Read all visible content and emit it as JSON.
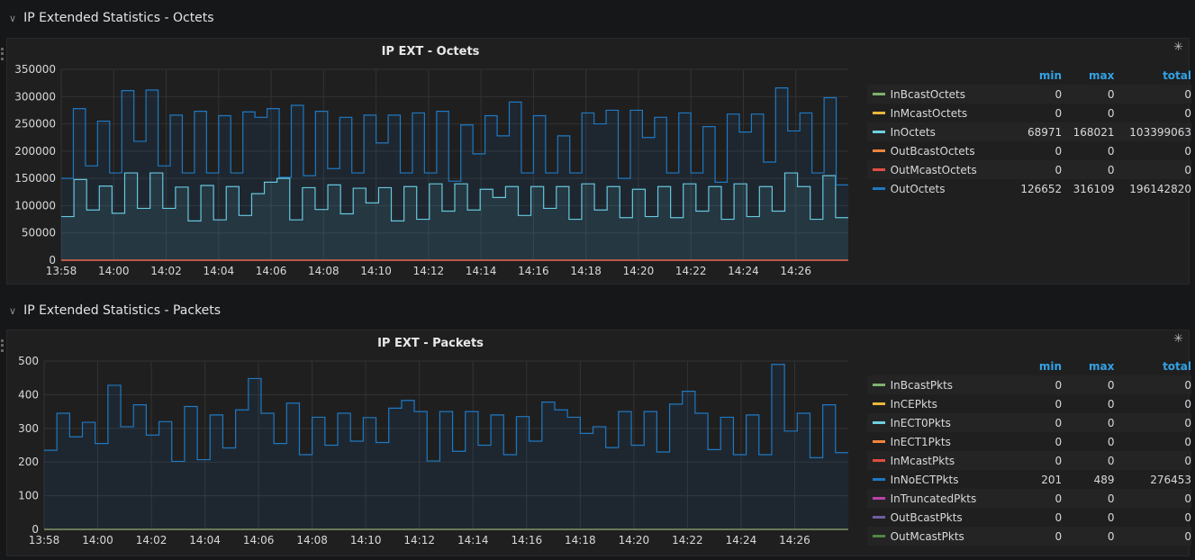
{
  "rows": [
    {
      "title": "IP Extended Statistics - Octets"
    },
    {
      "title": "IP Extended Statistics - Packets"
    }
  ],
  "legend_headers": {
    "min": "min",
    "max": "max",
    "total": "total"
  },
  "chart_data": [
    {
      "type": "line",
      "title": "IP EXT - Octets",
      "x_ticks": [
        "13:58",
        "14:00",
        "14:02",
        "14:04",
        "14:06",
        "14:08",
        "14:10",
        "14:12",
        "14:14",
        "14:16",
        "14:18",
        "14:20",
        "14:22",
        "14:24",
        "14:26"
      ],
      "x_range_minutes": [
        0,
        30
      ],
      "y_ticks": [
        "0",
        "50000",
        "100000",
        "150000",
        "200000",
        "250000",
        "300000",
        "350000"
      ],
      "ylim": [
        0,
        350000
      ],
      "series": [
        {
          "name": "InBcastOctets",
          "color": "#7eb26d",
          "min": "0",
          "max": "0",
          "total": "0",
          "values": [
            0
          ]
        },
        {
          "name": "InMcastOctets",
          "color": "#eab839",
          "min": "0",
          "max": "0",
          "total": "0",
          "values": [
            0
          ]
        },
        {
          "name": "InOctets",
          "color": "#6ed0e0",
          "min": "68971",
          "max": "168021",
          "total": "103399063",
          "values": [
            80000,
            148000,
            92000,
            136000,
            86000,
            160000,
            95000,
            160000,
            95000,
            134000,
            72000,
            137000,
            74000,
            135000,
            82000,
            122000,
            143000,
            150000,
            74000,
            133000,
            93000,
            138000,
            85000,
            132000,
            105000,
            133000,
            72000,
            135000,
            75000,
            140000,
            90000,
            140000,
            92000,
            130000,
            115000,
            135000,
            82000,
            135000,
            95000,
            135000,
            75000,
            140000,
            92000,
            135000,
            78000,
            130000,
            80000,
            135000,
            78000,
            140000,
            90000,
            135000,
            75000,
            140000,
            80000,
            135000,
            90000,
            160000,
            135000,
            75000,
            155000,
            78000
          ]
        },
        {
          "name": "OutBcastOctets",
          "color": "#ef843c",
          "min": "0",
          "max": "0",
          "total": "0",
          "values": [
            0
          ]
        },
        {
          "name": "OutMcastOctets",
          "color": "#e24d42",
          "min": "0",
          "max": "0",
          "total": "0",
          "values": [
            0
          ]
        },
        {
          "name": "OutOctets",
          "color": "#1f78c1",
          "min": "126652",
          "max": "316109",
          "total": "196142820",
          "values": [
            150000,
            278000,
            173000,
            255000,
            160000,
            311000,
            218000,
            312000,
            173000,
            266000,
            160000,
            273000,
            160000,
            265000,
            160000,
            272000,
            262000,
            278000,
            152000,
            284000,
            155000,
            273000,
            168000,
            262000,
            160000,
            266000,
            215000,
            266000,
            160000,
            270000,
            160000,
            273000,
            145000,
            248000,
            195000,
            265000,
            228000,
            290000,
            160000,
            265000,
            160000,
            228000,
            160000,
            270000,
            250000,
            275000,
            150000,
            275000,
            225000,
            262000,
            160000,
            270000,
            160000,
            245000,
            143000,
            268000,
            235000,
            268000,
            180000,
            316000,
            237000,
            270000,
            160000,
            298000,
            138000
          ]
        }
      ]
    },
    {
      "type": "line",
      "title": "IP EXT - Packets",
      "x_ticks": [
        "13:58",
        "14:00",
        "14:02",
        "14:04",
        "14:06",
        "14:08",
        "14:10",
        "14:12",
        "14:14",
        "14:16",
        "14:18",
        "14:20",
        "14:22",
        "14:24",
        "14:26"
      ],
      "x_range_minutes": [
        0,
        30
      ],
      "y_ticks": [
        "0",
        "100",
        "200",
        "300",
        "400",
        "500"
      ],
      "ylim": [
        0,
        500
      ],
      "series": [
        {
          "name": "InBcastPkts",
          "color": "#7eb26d",
          "min": "0",
          "max": "0",
          "total": "0",
          "values": [
            0
          ]
        },
        {
          "name": "InCEPkts",
          "color": "#eab839",
          "min": "0",
          "max": "0",
          "total": "0",
          "values": [
            0
          ]
        },
        {
          "name": "InECT0Pkts",
          "color": "#6ed0e0",
          "min": "0",
          "max": "0",
          "total": "0",
          "values": [
            0
          ]
        },
        {
          "name": "InECT1Pkts",
          "color": "#ef843c",
          "min": "0",
          "max": "0",
          "total": "0",
          "values": [
            0
          ]
        },
        {
          "name": "InMcastPkts",
          "color": "#e24d42",
          "min": "0",
          "max": "0",
          "total": "0",
          "values": [
            0
          ]
        },
        {
          "name": "InNoECTPkts",
          "color": "#1f78c1",
          "min": "201",
          "max": "489",
          "total": "276453",
          "values": [
            235,
            345,
            275,
            318,
            255,
            428,
            305,
            370,
            280,
            320,
            202,
            365,
            207,
            340,
            242,
            355,
            448,
            345,
            255,
            375,
            222,
            333,
            250,
            345,
            262,
            332,
            258,
            360,
            383,
            350,
            203,
            350,
            232,
            350,
            250,
            340,
            222,
            335,
            262,
            378,
            355,
            333,
            285,
            305,
            243,
            350,
            250,
            350,
            230,
            372,
            410,
            345,
            237,
            333,
            222,
            340,
            222,
            490,
            292,
            345,
            213,
            370,
            228
          ]
        },
        {
          "name": "InTruncatedPkts",
          "color": "#ba43a9",
          "min": "0",
          "max": "0",
          "total": "0",
          "values": [
            0
          ]
        },
        {
          "name": "OutBcastPkts",
          "color": "#705da0",
          "min": "0",
          "max": "0",
          "total": "0",
          "values": [
            0
          ]
        },
        {
          "name": "OutMcastPkts",
          "color": "#508642",
          "min": "0",
          "max": "0",
          "total": "0",
          "values": [
            0
          ]
        }
      ]
    }
  ]
}
